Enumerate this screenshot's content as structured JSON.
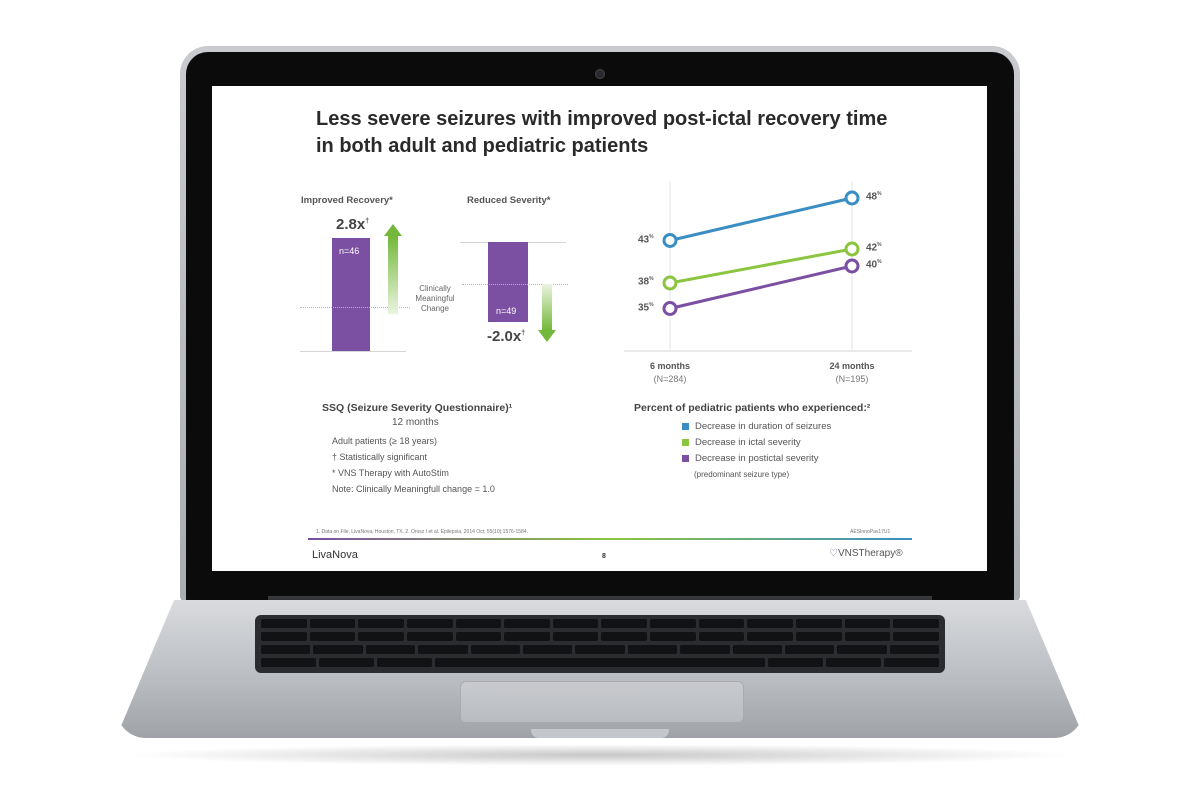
{
  "slide": {
    "title_line1": "Less severe seizures with improved post-ictal recovery time",
    "title_line2": "in both adult and pediatric patients",
    "footnote": "1. Data on File, LivaNova, Houston, TX. 2. Orosz I et al. Epilepsia. 2014 Oct; 55(10):1576-1584.",
    "code": "AESInnoPav17U1",
    "page_number": "8",
    "logo_left": "LivaNova",
    "logo_right": "VNSTherapy®"
  },
  "ssq": {
    "recovery_label": "Improved Recovery*",
    "severity_label": "Reduced Severity*",
    "recovery_value": "2.8x",
    "severity_value": "-2.0x",
    "sig_mark": "†",
    "recovery_n": "n=46",
    "severity_n": "n=49",
    "clinical_label": "Clinically Meaningful Change",
    "title": "SSQ (Seizure Severity Questionnaire)¹",
    "subtitle": "12 months",
    "notes": [
      "Adult patients (≥ 18 years)",
      "† Statistically significant",
      "* VNS Therapy with AutoStim",
      "Note: Clinically Meaningfull change = 1.0"
    ]
  },
  "chart_data": {
    "type": "line",
    "title": "Percent of pediatric patients who experienced:²",
    "categories": [
      "6 months",
      "24 months"
    ],
    "category_sub": [
      "(N=284)",
      "(N=195)"
    ],
    "series": [
      {
        "name": "Decrease in duration of seizures",
        "values": [
          43,
          48
        ],
        "color": "#3b8ec4"
      },
      {
        "name": "Decrease in ictal severity",
        "values": [
          38,
          42
        ],
        "color": "#8cc540"
      },
      {
        "name": "Decrease in postictal severity",
        "values": [
          35,
          40
        ],
        "color": "#7b4fa1"
      }
    ],
    "unit": "%",
    "legend_note": "(predominant seizure type)",
    "ylim": [
      30,
      50
    ]
  }
}
